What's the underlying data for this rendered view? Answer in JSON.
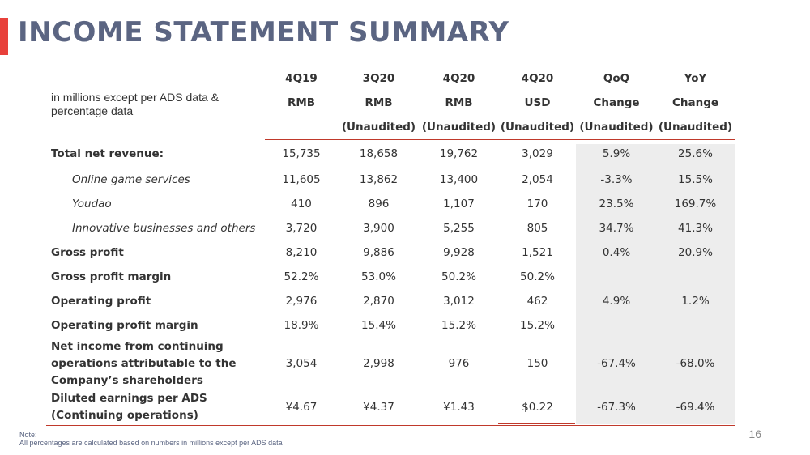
{
  "title": "INCOME STATEMENT SUMMARY",
  "description": "in millions except per ADS data & percentage data",
  "header_rows": [
    [
      "4Q19",
      "3Q20",
      "4Q20",
      "4Q20",
      "QoQ",
      "YoY"
    ],
    [
      "RMB",
      "RMB",
      "RMB",
      "USD",
      "Change",
      "Change"
    ],
    [
      "",
      "(Unaudited)",
      "(Unaudited)",
      "(Unaudited)",
      "(Unaudited)",
      "(Unaudited)"
    ]
  ],
  "rows": [
    {
      "label": "Total net revenue:",
      "values": [
        "15,735",
        "18,658",
        "19,762",
        "3,029",
        "5.9%",
        "25.6%"
      ]
    },
    {
      "label": "Online game services",
      "values": [
        "11,605",
        "13,862",
        "13,400",
        "2,054",
        "-3.3%",
        "15.5%"
      ]
    },
    {
      "label": "Youdao",
      "values": [
        "410",
        "896",
        "1,107",
        "170",
        "23.5%",
        "169.7%"
      ]
    },
    {
      "label": "Innovative businesses and others",
      "values": [
        "3,720",
        "3,900",
        "5,255",
        "805",
        "34.7%",
        "41.3%"
      ]
    },
    {
      "label": "Gross profit",
      "values": [
        "8,210",
        "9,886",
        "9,928",
        "1,521",
        "0.4%",
        "20.9%"
      ]
    },
    {
      "label": "Gross profit margin",
      "values": [
        "52.2%",
        "53.0%",
        "50.2%",
        "50.2%",
        "",
        ""
      ]
    },
    {
      "label": "Operating profit",
      "values": [
        "2,976",
        "2,870",
        "3,012",
        "462",
        "4.9%",
        "1.2%"
      ]
    },
    {
      "label": "Operating profit margin",
      "values": [
        "18.9%",
        "15.4%",
        "15.2%",
        "15.2%",
        "",
        ""
      ]
    },
    {
      "label_lines": [
        "Net income from continuing",
        "operations attributable to the",
        "Company’s shareholders"
      ],
      "values": [
        "3,054",
        "2,998",
        "976",
        "150",
        "-67.4%",
        "-68.0%"
      ]
    },
    {
      "label_lines": [
        "Diluted earnings per ADS",
        "(Continuing operations)"
      ],
      "values": [
        "¥4.67",
        "¥4.37",
        "¥1.43",
        "$0.22",
        "-67.3%",
        "-69.4%"
      ]
    }
  ],
  "note": {
    "heading": "Note:",
    "text": "All percentages are calculated based on numbers in millions except per ADS data"
  },
  "page_number": "16"
}
